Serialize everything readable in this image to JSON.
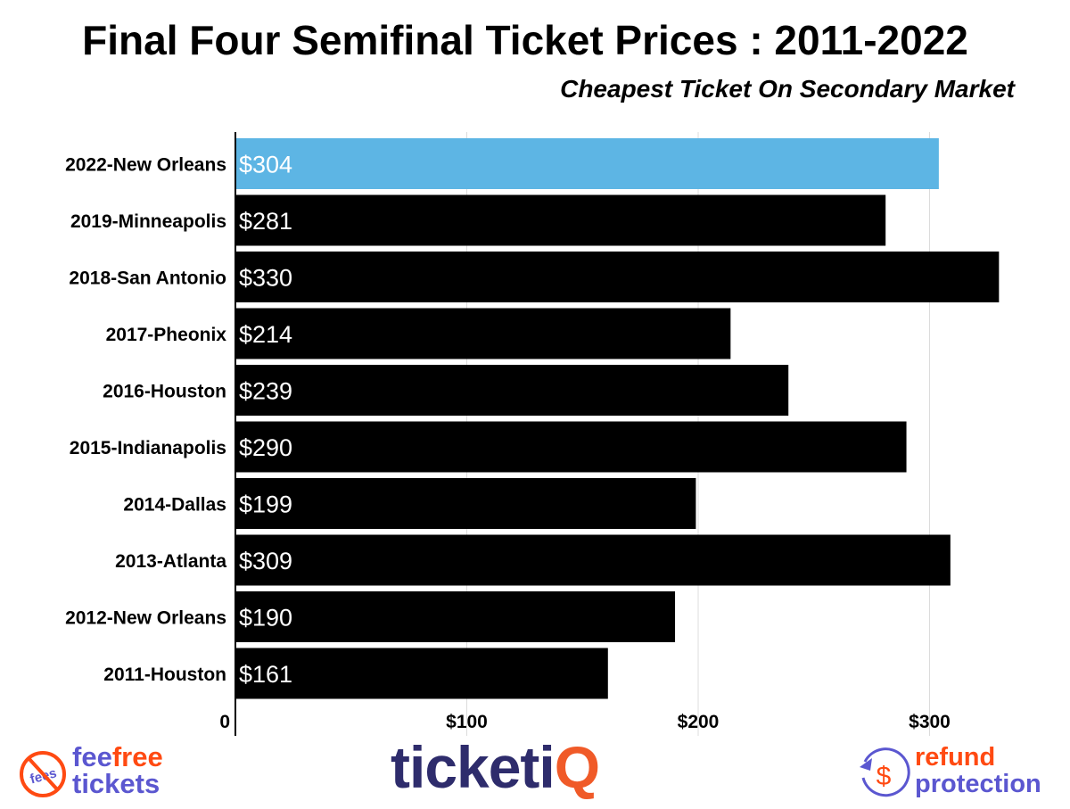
{
  "chart_data": {
    "type": "bar",
    "orientation": "horizontal",
    "title": "Final Four Semifinal Ticket Prices : 2011-2022",
    "subtitle": "Cheapest Ticket On Secondary Market",
    "categories": [
      "2022-New Orleans",
      "2019-Minneapolis",
      "2018-San Antonio",
      "2017-Pheonix",
      "2016-Houston",
      "2015-Indianapolis",
      "2014-Dallas",
      "2013-Atlanta",
      "2012-New Orleans",
      "2011-Houston"
    ],
    "values": [
      304,
      281,
      330,
      214,
      239,
      290,
      199,
      309,
      190,
      161
    ],
    "data_labels": [
      "$304",
      "$281",
      "$330",
      "$214",
      "$239",
      "$290",
      "$199",
      "$309",
      "$190",
      "$161"
    ],
    "xlim": [
      0,
      330
    ],
    "xticks": [
      0,
      100,
      200,
      300
    ],
    "xtick_labels": [
      "0",
      "$100",
      "$200",
      "$300"
    ],
    "grid": true,
    "colors": {
      "highlight": "#5db5e4",
      "default": "#000000",
      "label": "#ffffff"
    }
  },
  "logos": {
    "feefree": {
      "badge": "fees",
      "word1": "fee",
      "word2": "free",
      "word3": "tickets",
      "purple": "#5b57d0",
      "orange": "#ff4a12"
    },
    "ticketiq": {
      "main": "ticketi",
      "q": "Q",
      "navy": "#2e2c6c",
      "orange": "#f05a28"
    },
    "refund": {
      "word1": "refund",
      "word2": "protection",
      "symbol": "$"
    }
  }
}
